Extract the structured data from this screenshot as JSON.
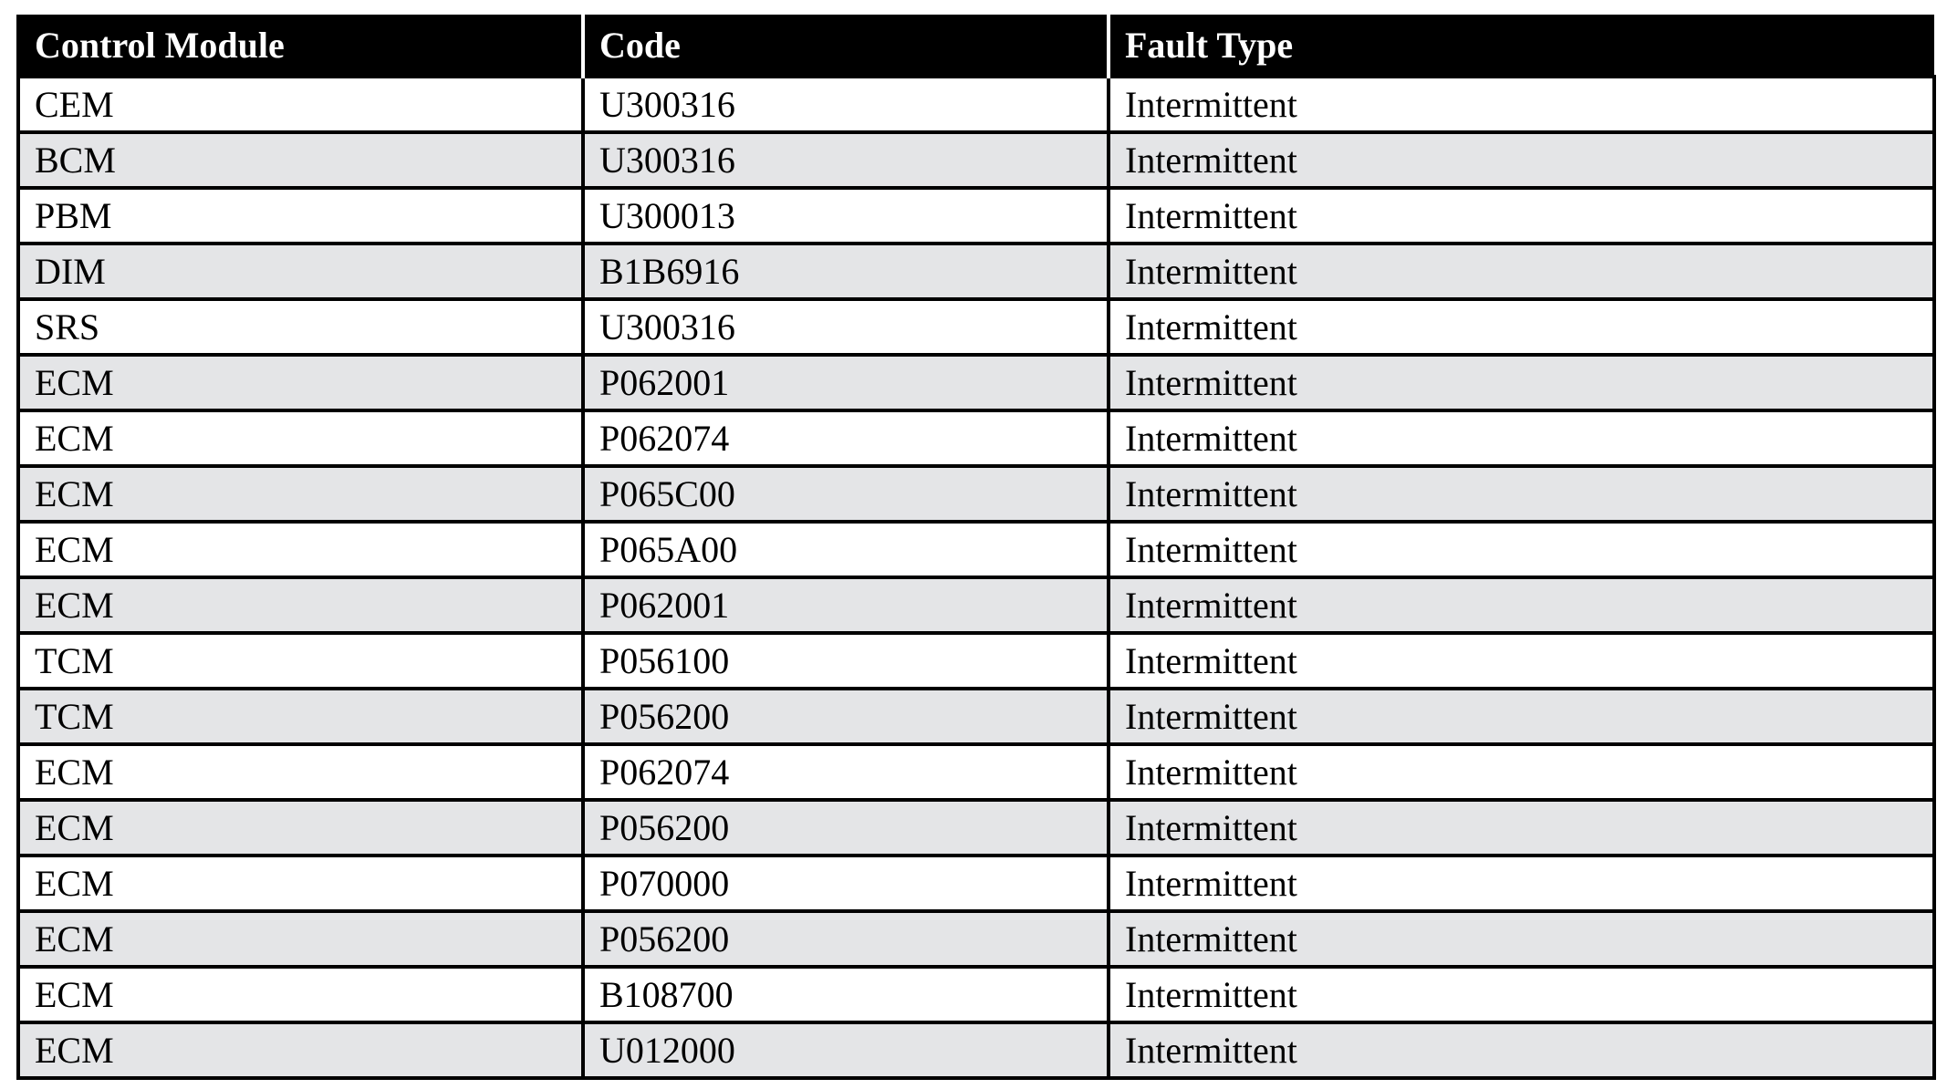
{
  "table": {
    "headers": [
      "Control Module",
      "Code",
      "Fault Type"
    ],
    "rows": [
      [
        "CEM",
        "U300316",
        "Intermittent"
      ],
      [
        "BCM",
        "U300316",
        "Intermittent"
      ],
      [
        "PBM",
        "U300013",
        "Intermittent"
      ],
      [
        "DIM",
        "B1B6916",
        "Intermittent"
      ],
      [
        "SRS",
        "U300316",
        "Intermittent"
      ],
      [
        "ECM",
        "P062001",
        "Intermittent"
      ],
      [
        "ECM",
        "P062074",
        "Intermittent"
      ],
      [
        "ECM",
        "P065C00",
        "Intermittent"
      ],
      [
        "ECM",
        "P065A00",
        "Intermittent"
      ],
      [
        "ECM",
        "P062001",
        "Intermittent"
      ],
      [
        "TCM",
        "P056100",
        "Intermittent"
      ],
      [
        "TCM",
        "P056200",
        "Intermittent"
      ],
      [
        "ECM",
        "P062074",
        "Intermittent"
      ],
      [
        "ECM",
        "P056200",
        "Intermittent"
      ],
      [
        "ECM",
        "P070000",
        "Intermittent"
      ],
      [
        "ECM",
        "P056200",
        "Intermittent"
      ],
      [
        "ECM",
        "B108700",
        "Intermittent"
      ],
      [
        "ECM",
        "U012000",
        "Intermittent"
      ]
    ],
    "colors": {
      "header_bg": "#000000",
      "header_text": "#ffffff",
      "stripe": "#e4e5e7"
    }
  }
}
